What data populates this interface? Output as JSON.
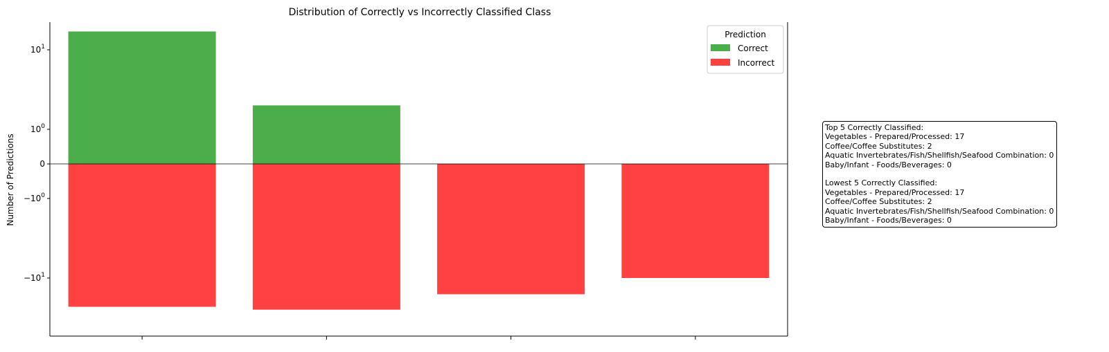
{
  "chart_data": {
    "type": "bar",
    "title": "Distribution of Correctly vs Incorrectly Classified Class",
    "xlabel": "",
    "ylabel": "Number of Predictions",
    "yscale": "symlog",
    "categories": [
      "",
      "",
      "",
      ""
    ],
    "series": [
      {
        "name": "Correct",
        "color": "#2ca02c",
        "values": [
          17,
          2,
          0,
          0
        ]
      },
      {
        "name": "Incorrect",
        "color": "#ff2020",
        "values": [
          -23,
          -25,
          -16,
          -10
        ]
      }
    ],
    "yticks": [
      {
        "value": 10,
        "label": "10^1"
      },
      {
        "value": 1,
        "label": "10^0"
      },
      {
        "value": 0,
        "label": "0"
      },
      {
        "value": -1,
        "label": "−10^0"
      },
      {
        "value": -10,
        "label": "−10^1"
      }
    ],
    "ylim": [
      -33,
      21
    ],
    "legend": {
      "title": "Prediction",
      "placement": "top-right"
    },
    "grid": false
  },
  "info_box": {
    "top_title": "Top 5 Correctly Classified:",
    "top_items": [
      "Vegetables - Prepared/Processed: 17",
      "Coffee/Coffee Substitutes: 2",
      "Aquatic Invertebrates/Fish/Shellfish/Seafood Combination: 0",
      "Baby/Infant - Foods/Beverages: 0"
    ],
    "low_title": "Lowest 5 Correctly Classified:",
    "low_items": [
      "Vegetables - Prepared/Processed: 17",
      "Coffee/Coffee Substitutes: 2",
      "Aquatic Invertebrates/Fish/Shellfish/Seafood Combination: 0",
      "Baby/Infant - Foods/Beverages: 0"
    ]
  }
}
